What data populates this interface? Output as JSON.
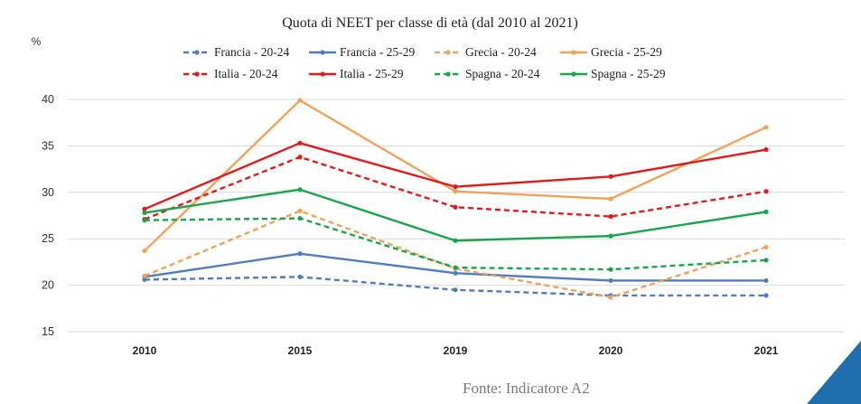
{
  "chart_data": {
    "type": "line",
    "title": "Quota di NEET per classe di età (dal 2010 al 2021)",
    "ylabel": "%",
    "ylim": [
      15,
      40
    ],
    "yticks": [
      15,
      20,
      25,
      30,
      35,
      40
    ],
    "grid": true,
    "legend_position": "top",
    "categories": [
      "2010",
      "2015",
      "2019",
      "2020",
      "2021"
    ],
    "series": [
      {
        "name": "Francia - 20-24",
        "color": "#4f7cc0",
        "dashed": true,
        "values": [
          20.6,
          20.9,
          19.5,
          18.9,
          18.9
        ]
      },
      {
        "name": "Francia - 25-29",
        "color": "#4f7cc0",
        "dashed": false,
        "values": [
          20.9,
          23.4,
          21.3,
          20.5,
          20.5
        ]
      },
      {
        "name": "Grecia - 20-24",
        "color": "#f0a25a",
        "dashed": true,
        "values": [
          21.0,
          28.0,
          21.8,
          18.7,
          24.1
        ]
      },
      {
        "name": "Grecia - 25-29",
        "color": "#f0a25a",
        "dashed": false,
        "values": [
          23.7,
          39.9,
          30.1,
          29.3,
          37.0
        ]
      },
      {
        "name": "Italia - 20-24",
        "color": "#e11b1b",
        "dashed": true,
        "values": [
          27.1,
          33.8,
          28.4,
          27.4,
          30.1
        ]
      },
      {
        "name": "Italia - 25-29",
        "color": "#e11b1b",
        "dashed": false,
        "values": [
          28.2,
          35.3,
          30.6,
          31.7,
          34.6
        ]
      },
      {
        "name": "Spagna - 20-24",
        "color": "#1aa54b",
        "dashed": true,
        "values": [
          27.0,
          27.2,
          21.9,
          21.7,
          22.7
        ]
      },
      {
        "name": "Spagna - 25-29",
        "color": "#1aa54b",
        "dashed": false,
        "values": [
          27.8,
          30.3,
          24.8,
          25.3,
          27.9
        ]
      }
    ]
  },
  "source_text": "Fonte: Indicatore A2",
  "corner_color": "#1f6fb0"
}
